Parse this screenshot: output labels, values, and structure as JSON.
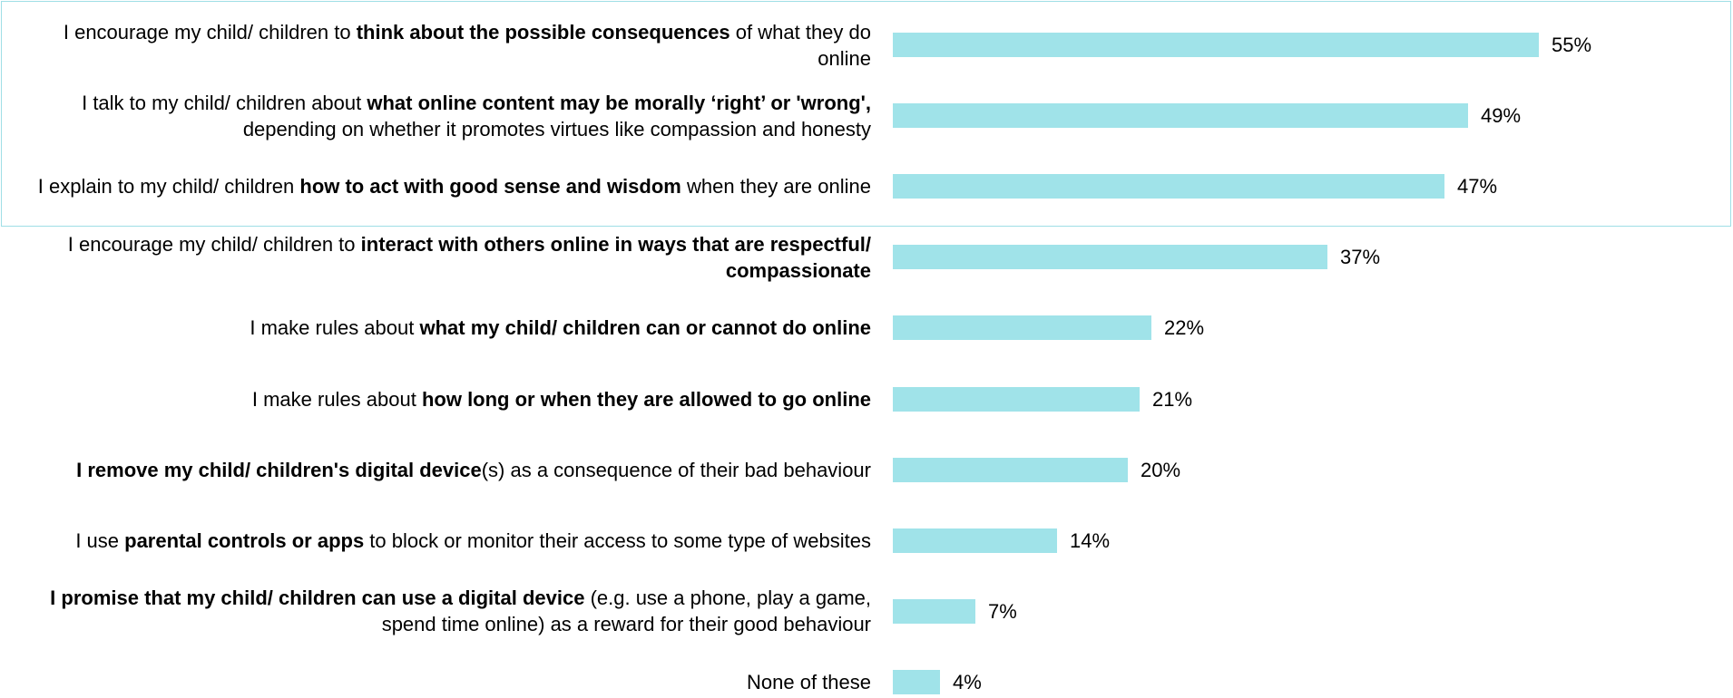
{
  "chart_data": {
    "type": "bar",
    "orientation": "horizontal",
    "title": "",
    "xlabel": "",
    "ylabel": "",
    "xlim": [
      0,
      55
    ],
    "grid": false,
    "highlighted_rows": [
      0,
      1,
      2
    ],
    "bar_color": "#a0e3e9",
    "highlight_border_color": "#9fdfe6",
    "categories": [
      [
        {
          "t": "I encourage my child/ children to ",
          "b": false
        },
        {
          "t": "think about the possible consequences",
          "b": true
        },
        {
          "t": " of what they do online",
          "b": false
        }
      ],
      [
        {
          "t": "I talk to my child/ children about ",
          "b": false
        },
        {
          "t": "what online content may be morally ‘right’ or 'wrong',",
          "b": true
        },
        {
          "t": " depending on whether it promotes virtues like compassion and honesty",
          "b": false
        }
      ],
      [
        {
          "t": "I explain to my child/ children ",
          "b": false
        },
        {
          "t": "how to act with good sense and wisdom",
          "b": true
        },
        {
          "t": " when they are online",
          "b": false
        }
      ],
      [
        {
          "t": "I encourage my child/ children to ",
          "b": false
        },
        {
          "t": "interact with others online in ways that are respectful/ compassionate",
          "b": true
        }
      ],
      [
        {
          "t": "I make rules about ",
          "b": false
        },
        {
          "t": "what my child/ children can or cannot do online",
          "b": true
        }
      ],
      [
        {
          "t": "I make rules about ",
          "b": false
        },
        {
          "t": "how long or when they are allowed to go online",
          "b": true
        }
      ],
      [
        {
          "t": "I remove my child/ children's digital device",
          "b": true
        },
        {
          "t": "(s) as a consequence of their bad behaviour",
          "b": false
        }
      ],
      [
        {
          "t": "I use ",
          "b": false
        },
        {
          "t": "parental controls or apps",
          "b": true
        },
        {
          "t": " to block or monitor their access to some type of websites",
          "b": false
        }
      ],
      [
        {
          "t": "I promise that my child/ children can use a digital device",
          "b": true
        },
        {
          "t": " (e.g. use a phone, play a game, spend time online) as a reward for their good behaviour",
          "b": false
        }
      ],
      [
        {
          "t": "None of these",
          "b": false
        }
      ]
    ],
    "values": [
      55,
      49,
      47,
      37,
      22,
      21,
      20,
      14,
      7,
      4
    ],
    "value_labels": [
      "55%",
      "49%",
      "47%",
      "37%",
      "22%",
      "21%",
      "20%",
      "14%",
      "7%",
      "4%"
    ]
  }
}
